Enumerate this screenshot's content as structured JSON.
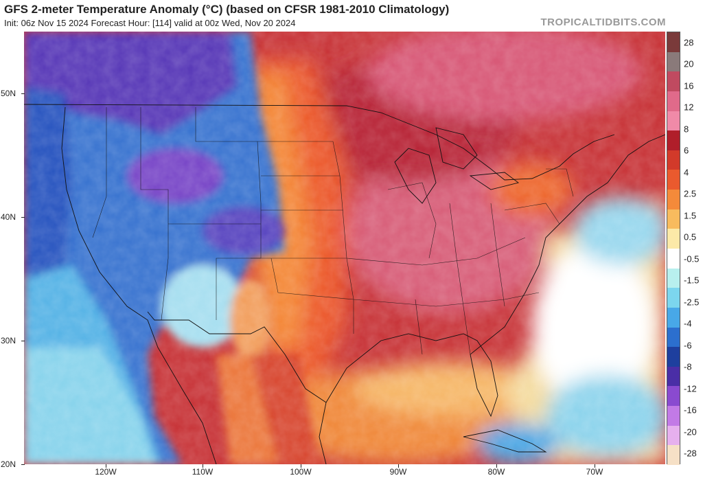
{
  "header": {
    "title": "GFS 2-meter Temperature Anomaly (°C) (based on CFSR 1981-2010 Climatology)",
    "subtitle": "Init: 06z Nov 15 2024   Forecast Hour: [114]   valid at 00z Wed, Nov 20 2024",
    "watermark": "TROPICALTIDBITS.COM"
  },
  "axes": {
    "lat_labels": [
      "50N",
      "40N",
      "30N",
      "20N"
    ],
    "lon_labels": [
      "120W",
      "110W",
      "100W",
      "90W",
      "80W",
      "70W"
    ]
  },
  "colorbar": {
    "labels": [
      "28",
      "20",
      "16",
      "12",
      "8",
      "6",
      "4",
      "2.5",
      "1.5",
      "0.5",
      "-0.5",
      "-1.5",
      "-2.5",
      "-4",
      "-6",
      "-8",
      "-12",
      "-16",
      "-20",
      "-28"
    ],
    "colors": [
      "#7a3a3a",
      "#8a7a7a",
      "#c04a60",
      "#e06a8a",
      "#f08aa8",
      "#b01e2a",
      "#d23a2a",
      "#ea5a2e",
      "#f48a3a",
      "#f8bb5e",
      "#fce9a8",
      "#ffffff",
      "#b8f0ee",
      "#7cd6ee",
      "#48a8e8",
      "#2c6fce",
      "#1e3f9e",
      "#4a2ea6",
      "#8a4ad0",
      "#c27ae6",
      "#e6b0ee",
      "#f6e0c6"
    ]
  }
}
